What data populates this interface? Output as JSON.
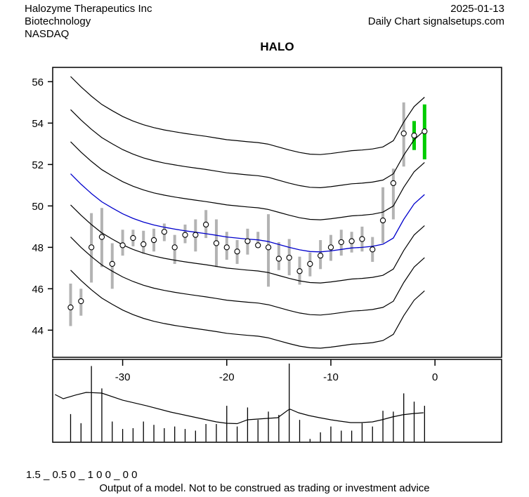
{
  "header": {
    "company": "Halozyme Therapeutics Inc",
    "sector": "Biotechnology",
    "exchange": "NASDAQ",
    "date": "2025-01-13",
    "source": "Daily Chart signalsetups.com"
  },
  "title": "HALO",
  "footer": {
    "params": "1.5 _ 0.5 0 _ 1 0 0 _ 0 0",
    "disclaimer": "Output of a model. Not to be construed as trading or investment advice"
  },
  "chart_data": {
    "type": "candlestick-with-bands",
    "title": "HALO",
    "price_panel": {
      "xlim": [
        -36.72,
        6.4
      ],
      "ylim": [
        42.69,
        56.69
      ],
      "yticks": [
        44,
        46,
        48,
        50,
        52,
        54,
        56
      ],
      "xticks": [
        -30,
        -20,
        -10,
        0
      ],
      "bars": [
        [
          -35,
          46.25,
          44.2,
          45.1,
          0
        ],
        [
          -34,
          46.0,
          44.7,
          45.4,
          0
        ],
        [
          -33,
          49.65,
          46.3,
          48.0,
          0
        ],
        [
          -32,
          49.9,
          47.05,
          48.5,
          0
        ],
        [
          -31,
          48.2,
          46.0,
          47.2,
          0
        ],
        [
          -30,
          48.85,
          47.6,
          48.1,
          0
        ],
        [
          -29,
          48.85,
          48.05,
          48.45,
          0
        ],
        [
          -28,
          48.8,
          47.7,
          48.15,
          0
        ],
        [
          -27,
          48.9,
          47.8,
          48.35,
          0
        ],
        [
          -26,
          49.15,
          48.3,
          48.75,
          0
        ],
        [
          -25,
          48.6,
          47.2,
          48.0,
          0
        ],
        [
          -24,
          49.1,
          48.2,
          48.6,
          0
        ],
        [
          -23,
          49.35,
          47.8,
          48.6,
          0
        ],
        [
          -22,
          49.8,
          48.45,
          49.1,
          0
        ],
        [
          -21,
          49.35,
          47.05,
          48.2,
          0
        ],
        [
          -20,
          48.75,
          47.4,
          48.0,
          0
        ],
        [
          -19,
          48.35,
          47.2,
          47.8,
          0
        ],
        [
          -18,
          48.9,
          47.65,
          48.3,
          0
        ],
        [
          -17,
          48.75,
          48.0,
          48.1,
          0
        ],
        [
          -16,
          49.6,
          46.1,
          48.0,
          0
        ],
        [
          -15,
          48.25,
          46.9,
          47.45,
          0
        ],
        [
          -14,
          48.4,
          46.65,
          47.5,
          0
        ],
        [
          -13,
          47.55,
          46.2,
          46.85,
          0
        ],
        [
          -12,
          47.75,
          46.6,
          47.2,
          0
        ],
        [
          -11,
          48.35,
          46.95,
          47.6,
          0
        ],
        [
          -10,
          48.6,
          47.35,
          48.0,
          0
        ],
        [
          -9,
          48.85,
          47.6,
          48.25,
          0
        ],
        [
          -8,
          48.75,
          47.75,
          48.3,
          0
        ],
        [
          -7,
          49.0,
          47.8,
          48.4,
          0
        ],
        [
          -6,
          48.5,
          47.3,
          47.9,
          0
        ],
        [
          -5,
          50.9,
          48.2,
          49.3,
          0
        ],
        [
          -4,
          51.8,
          49.35,
          51.1,
          0
        ],
        [
          -3,
          55.0,
          51.9,
          53.5,
          0
        ],
        [
          -2,
          54.1,
          52.7,
          53.4,
          1
        ],
        [
          -1,
          54.9,
          52.25,
          53.6,
          1
        ]
      ],
      "median_line": [
        [
          -35,
          51.55
        ],
        [
          -34,
          51.05
        ],
        [
          -33,
          50.6
        ],
        [
          -32,
          50.2
        ],
        [
          -31,
          49.9
        ],
        [
          -30,
          49.62
        ],
        [
          -29,
          49.4
        ],
        [
          -28,
          49.22
        ],
        [
          -27,
          49.08
        ],
        [
          -26,
          48.97
        ],
        [
          -25,
          48.88
        ],
        [
          -24,
          48.8
        ],
        [
          -23,
          48.73
        ],
        [
          -22,
          48.66
        ],
        [
          -21,
          48.58
        ],
        [
          -20,
          48.5
        ],
        [
          -19,
          48.45
        ],
        [
          -18,
          48.4
        ],
        [
          -17,
          48.36
        ],
        [
          -16,
          48.28
        ],
        [
          -15,
          48.14
        ],
        [
          -14,
          48.0
        ],
        [
          -13,
          47.88
        ],
        [
          -12,
          47.8
        ],
        [
          -11,
          47.78
        ],
        [
          -10,
          47.83
        ],
        [
          -9,
          47.9
        ],
        [
          -8,
          47.97
        ],
        [
          -7,
          48.0
        ],
        [
          -6,
          48.05
        ],
        [
          -5,
          48.15
        ],
        [
          -4,
          48.45
        ],
        [
          -3,
          49.35
        ],
        [
          -2,
          50.1
        ],
        [
          -1,
          50.55
        ]
      ],
      "band_offsets": [
        4.7,
        3.1,
        1.55,
        0,
        -1.5,
        -3.05,
        -4.65
      ],
      "colors": {
        "band": "#000000",
        "median": "#0000cc",
        "bar": "#b3b3b3",
        "bar_recent": "#00cc00",
        "marker_fill": "#ffffff",
        "marker_stroke": "#000000"
      }
    },
    "volume_panel": {
      "bars": [
        [
          -35,
          0.34
        ],
        [
          -34,
          0.23
        ],
        [
          -33,
          0.92
        ],
        [
          -32,
          0.65
        ],
        [
          -31,
          0.25
        ],
        [
          -30,
          0.16
        ],
        [
          -29,
          0.17
        ],
        [
          -28,
          0.25
        ],
        [
          -27,
          0.21
        ],
        [
          -26,
          0.17
        ],
        [
          -25,
          0.19
        ],
        [
          -24,
          0.16
        ],
        [
          -23,
          0.14
        ],
        [
          -22,
          0.22
        ],
        [
          -21,
          0.22
        ],
        [
          -20,
          0.44
        ],
        [
          -19,
          0.19
        ],
        [
          -18,
          0.42
        ],
        [
          -17,
          0.27
        ],
        [
          -16,
          0.37
        ],
        [
          -15,
          0.33
        ],
        [
          -14,
          0.95
        ],
        [
          -13,
          0.27
        ],
        [
          -12,
          0.04
        ],
        [
          -11,
          0.12
        ],
        [
          -10,
          0.19
        ],
        [
          -9,
          0.14
        ],
        [
          -8,
          0.14
        ],
        [
          -7,
          0.23
        ],
        [
          -6,
          0.19
        ],
        [
          -5,
          0.38
        ],
        [
          -4,
          0.37
        ],
        [
          -3,
          0.59
        ],
        [
          -2,
          0.49
        ],
        [
          -1,
          0.44
        ]
      ],
      "ma_line": [
        [
          -36.5,
          0.576
        ],
        [
          -35.7,
          0.525
        ],
        [
          -34.5,
          0.57
        ],
        [
          -33.5,
          0.602
        ],
        [
          -32,
          0.593
        ],
        [
          -30,
          0.508
        ],
        [
          -27.7,
          0.44
        ],
        [
          -25.4,
          0.364
        ],
        [
          -23.2,
          0.305
        ],
        [
          -21,
          0.246
        ],
        [
          -20,
          0.229
        ],
        [
          -19,
          0.225
        ],
        [
          -18,
          0.271
        ],
        [
          -16.1,
          0.288
        ],
        [
          -15.1,
          0.297
        ],
        [
          -14.1,
          0.39
        ],
        [
          -13.9,
          0.398
        ],
        [
          -13.1,
          0.356
        ],
        [
          -12.1,
          0.322
        ],
        [
          -11.1,
          0.297
        ],
        [
          -10,
          0.271
        ],
        [
          -9.1,
          0.254
        ],
        [
          -8.1,
          0.237
        ],
        [
          -7.1,
          0.237
        ],
        [
          -6,
          0.246
        ],
        [
          -5.1,
          0.271
        ],
        [
          -4.1,
          0.305
        ],
        [
          -3.1,
          0.331
        ],
        [
          -2.1,
          0.347
        ],
        [
          -1.1,
          0.356
        ]
      ]
    }
  }
}
